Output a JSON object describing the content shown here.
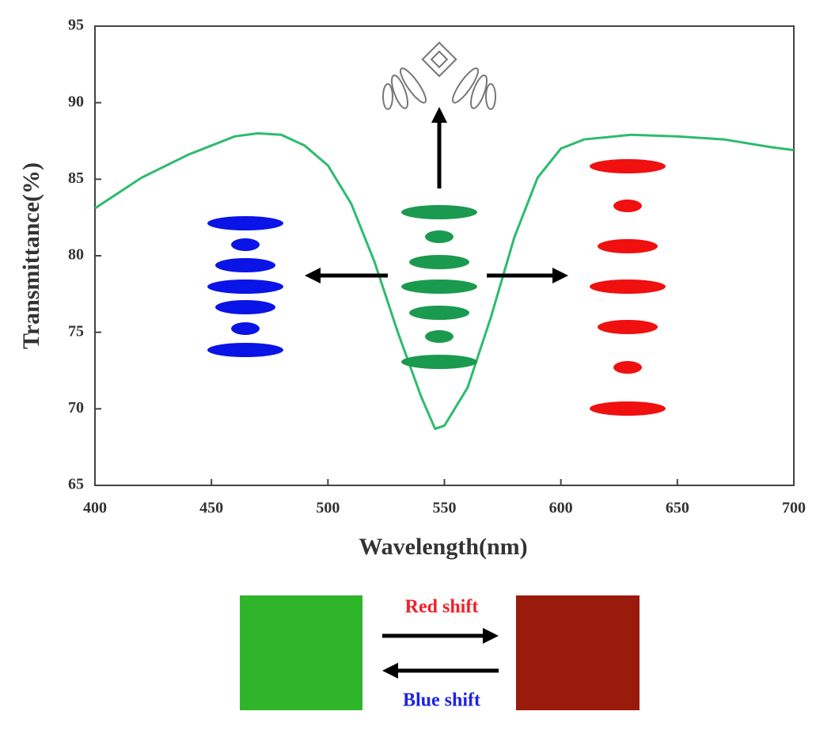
{
  "chart_data": {
    "type": "line",
    "xlabel": "Wavelength(nm)",
    "ylabel": "Transmittance(%)",
    "x": [
      400,
      420,
      440,
      460,
      470,
      480,
      490,
      500,
      510,
      520,
      530,
      540,
      546,
      550,
      560,
      570,
      580,
      590,
      600,
      610,
      630,
      650,
      670,
      690,
      700
    ],
    "values": [
      83.1,
      85.1,
      86.6,
      87.8,
      88.0,
      87.9,
      87.2,
      85.9,
      83.4,
      79.6,
      75.0,
      70.8,
      68.7,
      68.9,
      71.4,
      76.0,
      81.2,
      85.1,
      87.0,
      87.6,
      87.9,
      87.8,
      87.6,
      87.1,
      86.9
    ],
    "color": "#2dbb6e",
    "xlim": [
      400,
      700
    ],
    "xticks": [
      400,
      450,
      500,
      550,
      600,
      650,
      700
    ],
    "ylim": [
      65,
      95
    ],
    "yticks": [
      65,
      70,
      75,
      80,
      85,
      90,
      95
    ],
    "annotations": [
      "Red shift",
      "Blue shift"
    ]
  }
}
